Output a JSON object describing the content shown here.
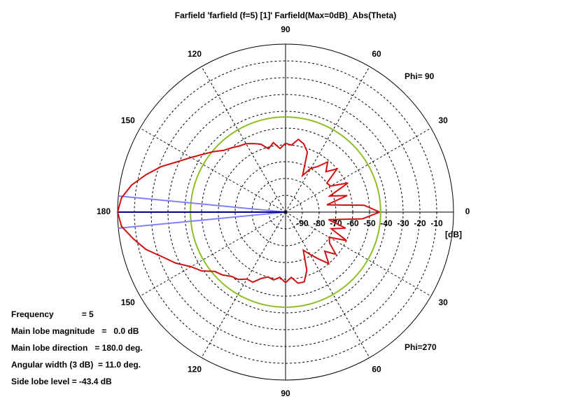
{
  "chart_data": {
    "type": "polar",
    "title": "Farfield 'farfield (f=5) [1]' Farfield(Max=0dB)_Abs(Theta)",
    "y_label": "[dB]",
    "x": [
      0,
      5,
      10,
      15,
      20,
      25,
      30,
      35,
      40,
      45,
      50,
      55,
      60,
      65,
      70,
      75,
      80,
      85,
      90,
      95,
      100,
      105,
      110,
      115,
      120,
      125,
      130,
      135,
      140,
      145,
      150,
      155,
      160,
      165,
      170,
      175,
      180
    ],
    "xlim": [
      0,
      180
    ],
    "xticks": [
      0,
      30,
      60,
      90,
      120,
      150,
      180
    ],
    "ylim": [
      -100,
      0
    ],
    "yticks": [
      -90,
      -80,
      -70,
      -60,
      -50,
      -40,
      -30,
      -20,
      -10
    ],
    "grid": true,
    "series": [
      {
        "name": "Phi= 90",
        "color": "#d01010",
        "values": [
          -44,
          -53,
          -75,
          -62,
          -72,
          -59,
          -69,
          -70,
          -60,
          -66,
          -61,
          -67,
          -70,
          -76,
          -62,
          -58,
          -56,
          -60,
          -59,
          -62,
          -58,
          -61,
          -57,
          -55,
          -53,
          -52,
          -50,
          -48,
          -44,
          -40,
          -35,
          -29,
          -21,
          -14,
          -7,
          -2,
          0
        ]
      },
      {
        "name": "Phi=270",
        "color": "#d01010",
        "values": [
          -44,
          -54,
          -74,
          -63,
          -71,
          -60,
          -70,
          -68,
          -61,
          -67,
          -60,
          -66,
          -71,
          -75,
          -63,
          -57,
          -57,
          -61,
          -58,
          -61,
          -59,
          -60,
          -58,
          -54,
          -54,
          -51,
          -50,
          -47,
          -45,
          -39,
          -35,
          -28,
          -22,
          -14,
          -8,
          -2,
          0
        ]
      }
    ],
    "side_lobe_level": -43.4,
    "side_lobe_color": "#8cbf26",
    "main_lobe_direction": 180,
    "main_lobe_color": "#000080",
    "angular_width": 11.0,
    "width_color": "#8080ff",
    "info": [
      "Frequency            = 5",
      "Main lobe magnitude   =   0.0 dB",
      "Main lobe direction   = 180.0 deg.",
      "Angular width (3 dB)  = 11.0 deg.",
      "Side lobe level = -43.4 dB"
    ]
  }
}
